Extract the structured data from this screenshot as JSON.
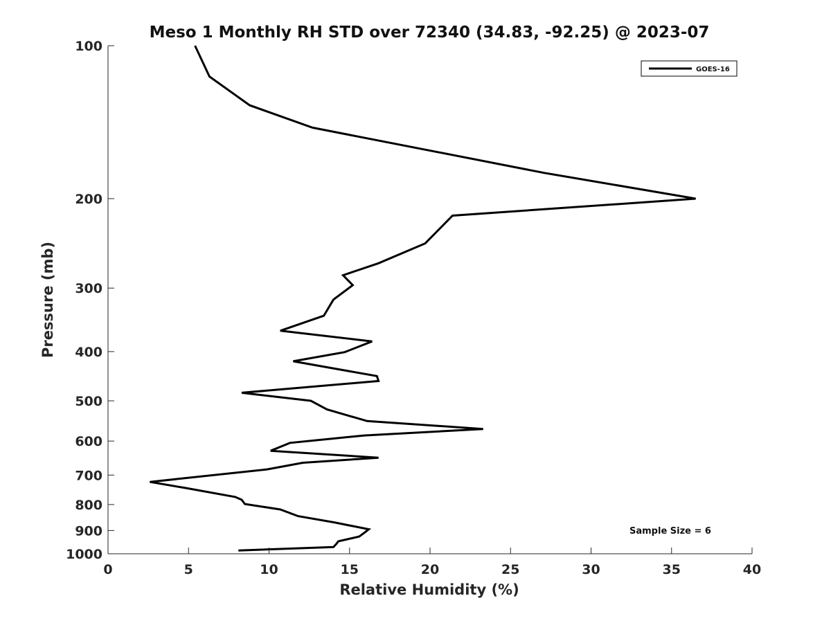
{
  "chart_data": {
    "type": "line",
    "title": "Meso 1 Monthly RH STD over 72340 (34.83, -92.25) @ 2023-07",
    "xlabel": "Relative Humidity (%)",
    "ylabel": "Pressure (mb)",
    "xlim": [
      0,
      40
    ],
    "ylim": [
      1000,
      100
    ],
    "yscale": "log",
    "xticks": [
      0,
      5,
      10,
      15,
      20,
      25,
      30,
      35,
      40
    ],
    "xtick_labels": [
      "0",
      "5",
      "10",
      "15",
      "20",
      "25",
      "30",
      "35",
      "40"
    ],
    "yticks": [
      100,
      200,
      300,
      400,
      500,
      600,
      700,
      800,
      900,
      1000
    ],
    "ytick_labels": [
      "100",
      "200",
      "300",
      "400",
      "500",
      "600",
      "700",
      "800",
      "900",
      "1000"
    ],
    "grid": false,
    "legend": {
      "placement": "top-right"
    },
    "annotation": "Sample Size = 6",
    "series": [
      {
        "name": "GOES-16",
        "color": "#000000",
        "x": [
          5.4,
          6.3,
          8.8,
          12.7,
          27.1,
          36.5,
          21.4,
          19.7,
          16.8,
          14.6,
          15.2,
          14.0,
          13.4,
          10.7,
          16.4,
          14.7,
          11.5,
          16.7,
          16.8,
          8.3,
          12.6,
          13.6,
          16.1,
          23.3,
          15.9,
          11.3,
          10.1,
          16.8,
          12.1,
          9.9,
          2.6,
          4.8,
          7.9,
          8.3,
          8.5,
          10.7,
          11.8,
          14.1,
          16.2,
          15.9,
          15.6,
          14.3,
          14.2,
          14.0,
          8.1
        ],
        "y": [
          100,
          115,
          131,
          145,
          178,
          200,
          216,
          245,
          268,
          283,
          296,
          316,
          340,
          364,
          382,
          401,
          418,
          447,
          457,
          482,
          500,
          520,
          548,
          568,
          585,
          605,
          627,
          647,
          662,
          682,
          722,
          742,
          773,
          783,
          798,
          818,
          843,
          868,
          895,
          910,
          925,
          945,
          955,
          970,
          985
        ]
      }
    ]
  }
}
